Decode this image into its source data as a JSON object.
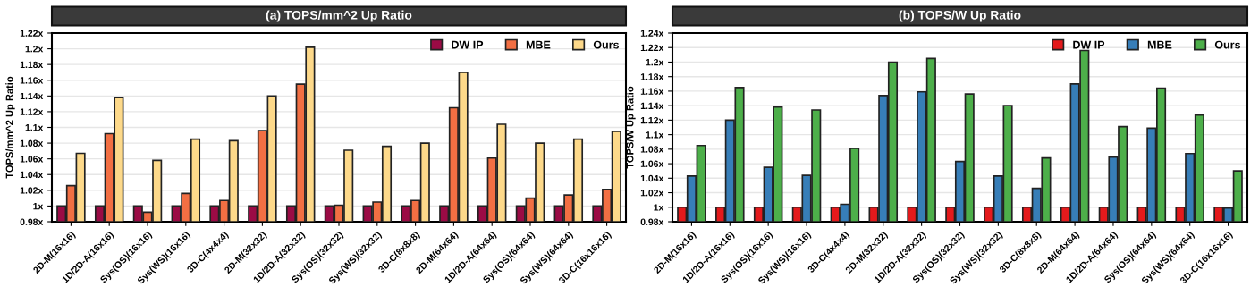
{
  "chart_data": [
    {
      "type": "bar",
      "title": "(a) TOPS/mm^2 Up Ratio",
      "ylabel": "TOPS/mm^2 Up Ratio",
      "categories": [
        "2D-M(16x16)",
        "1D/2D-A(16x16)",
        "Sys(OS)(16x16)",
        "Sys(WS)(16x16)",
        "3D-C(4x4x4)",
        "2D-M(32x32)",
        "1D/2D-A(32x32)",
        "Sys(OS)(32x32)",
        "Sys(WS)(32x32)",
        "3D-C(8x8x8)",
        "2D-M(64x64)",
        "1D/2D-A(64x64)",
        "Sys(OS)(64x64)",
        "Sys(WS)(64x64)",
        "3D-C(16x16x16)"
      ],
      "series": [
        {
          "name": "DW IP",
          "color": "#9b0b45",
          "values": [
            1.0,
            1.0,
            1.0,
            1.0,
            1.0,
            1.0,
            1.0,
            1.0,
            1.0,
            1.0,
            1.0,
            1.0,
            1.0,
            1.0,
            1.0
          ]
        },
        {
          "name": "MBE",
          "color": "#f26f43",
          "values": [
            1.026,
            1.092,
            0.992,
            1.016,
            1.007,
            1.096,
            1.155,
            1.001,
            1.005,
            1.007,
            1.125,
            1.061,
            1.01,
            1.014,
            1.021
          ]
        },
        {
          "name": "Ours",
          "color": "#fdd98a",
          "values": [
            1.067,
            1.138,
            1.058,
            1.085,
            1.083,
            1.14,
            1.202,
            1.071,
            1.076,
            1.08,
            1.17,
            1.104,
            1.08,
            1.085,
            1.095
          ]
        }
      ],
      "ylim": [
        0.98,
        1.22
      ],
      "yticks": [
        {
          "value": 0.98,
          "label": "0.98x"
        },
        {
          "value": 1.0,
          "label": "1x"
        },
        {
          "value": 1.02,
          "label": "1.02x"
        },
        {
          "value": 1.04,
          "label": "1.04x"
        },
        {
          "value": 1.06,
          "label": "1.06x"
        },
        {
          "value": 1.08,
          "label": "1.08x"
        },
        {
          "value": 1.1,
          "label": "1.1x"
        },
        {
          "value": 1.12,
          "label": "1.12x"
        },
        {
          "value": 1.14,
          "label": "1.14x"
        },
        {
          "value": 1.16,
          "label": "1.16x"
        },
        {
          "value": 1.18,
          "label": "1.18x"
        },
        {
          "value": 1.2,
          "label": "1.2x"
        },
        {
          "value": 1.22,
          "label": "1.22x"
        }
      ],
      "grid": "y",
      "legend": "top right"
    },
    {
      "type": "bar",
      "title": "(b) TOPS/W Up Ratio",
      "ylabel": "TOPS/W Up Ratio",
      "categories": [
        "2D-M(16x16)",
        "1D/2D-A(16x16)",
        "Sys(OS)(16x16)",
        "Sys(WS)(16x16)",
        "3D-C(4x4x4)",
        "2D-M(32x32)",
        "1D/2D-A(32x32)",
        "Sys(OS)(32x32)",
        "Sys(WS)(32x32)",
        "3D-C(8x8x8)",
        "2D-M(64x64)",
        "1D/2D-A(64x64)",
        "Sys(OS)(64x64)",
        "Sys(WS)(64x64)",
        "3D-C(16x16x16)"
      ],
      "series": [
        {
          "name": "DW IP",
          "color": "#e41a1c",
          "values": [
            1.0,
            1.0,
            1.0,
            1.0,
            1.0,
            1.0,
            1.0,
            1.0,
            1.0,
            1.0,
            1.0,
            1.0,
            1.0,
            1.0,
            1.0
          ]
        },
        {
          "name": "MBE",
          "color": "#377eb8",
          "values": [
            1.043,
            1.12,
            1.055,
            1.044,
            1.004,
            1.154,
            1.159,
            1.063,
            1.043,
            1.026,
            1.17,
            1.069,
            1.109,
            1.074,
            0.999
          ]
        },
        {
          "name": "Ours",
          "color": "#4daf4a",
          "values": [
            1.085,
            1.165,
            1.138,
            1.134,
            1.081,
            1.2,
            1.205,
            1.156,
            1.14,
            1.068,
            1.216,
            1.111,
            1.164,
            1.127,
            1.05
          ]
        }
      ],
      "ylim": [
        0.98,
        1.24
      ],
      "yticks": [
        {
          "value": 0.98,
          "label": "0.98x"
        },
        {
          "value": 1.0,
          "label": "1x"
        },
        {
          "value": 1.02,
          "label": "1.02x"
        },
        {
          "value": 1.04,
          "label": "1.04x"
        },
        {
          "value": 1.06,
          "label": "1.06x"
        },
        {
          "value": 1.08,
          "label": "1.08x"
        },
        {
          "value": 1.1,
          "label": "1.1x"
        },
        {
          "value": 1.12,
          "label": "1.12x"
        },
        {
          "value": 1.14,
          "label": "1.14x"
        },
        {
          "value": 1.16,
          "label": "1.16x"
        },
        {
          "value": 1.18,
          "label": "1.18x"
        },
        {
          "value": 1.2,
          "label": "1.2x"
        },
        {
          "value": 1.22,
          "label": "1.22x"
        },
        {
          "value": 1.24,
          "label": "1.24x"
        }
      ],
      "grid": "y",
      "legend": "top right"
    }
  ]
}
